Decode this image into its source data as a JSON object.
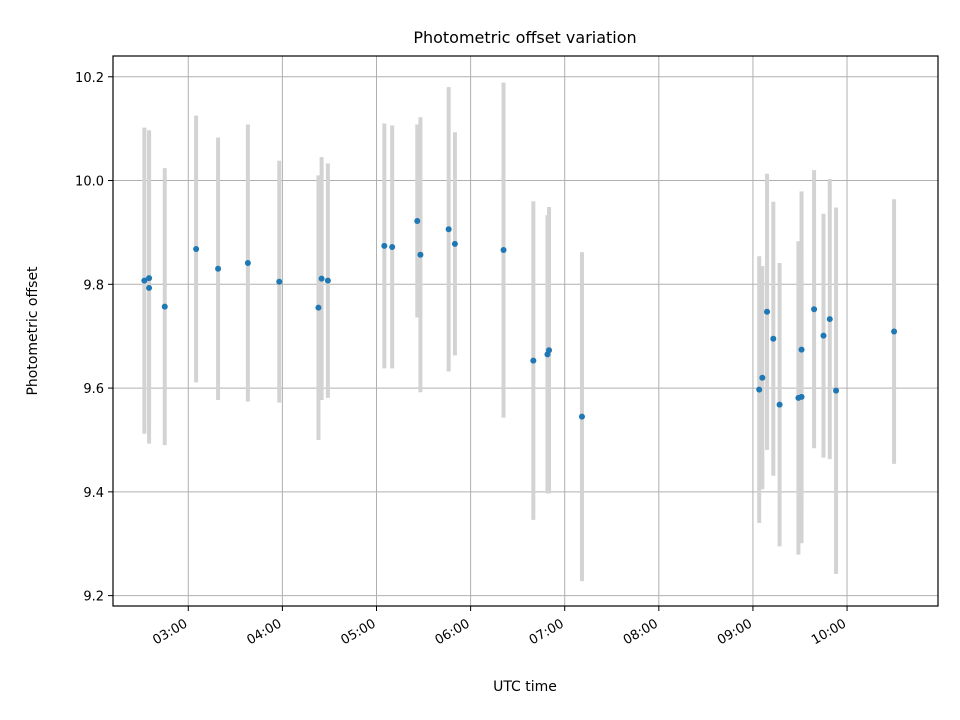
{
  "chart_data": {
    "type": "scatter",
    "title": "Photometric offset variation",
    "xlabel": "UTC time",
    "ylabel": "Photometric offset",
    "x_axis": {
      "type": "time",
      "range": [
        "02:12",
        "10:58"
      ],
      "ticks": [
        "03:00",
        "04:00",
        "05:00",
        "06:00",
        "07:00",
        "08:00",
        "09:00",
        "10:00"
      ]
    },
    "y_axis": {
      "range": [
        9.18,
        10.24
      ],
      "ticks": [
        "9.2",
        "9.4",
        "9.6",
        "9.8",
        "10.0",
        "10.2"
      ]
    },
    "grid": true,
    "legend": "none",
    "colors": {
      "points": "#1f77b4",
      "error_bars": "#d3d3d3"
    },
    "points": [
      {
        "t": "02:32",
        "y": 9.807,
        "err": 0.295
      },
      {
        "t": "02:35",
        "y": 9.812,
        "err": 0.285
      },
      {
        "t": "02:35",
        "y": 9.793,
        "err": 0.3
      },
      {
        "t": "02:45",
        "y": 9.757,
        "err": 0.267
      },
      {
        "t": "03:05",
        "y": 9.868,
        "err": 0.257
      },
      {
        "t": "03:19",
        "y": 9.83,
        "err": 0.253
      },
      {
        "t": "03:38",
        "y": 9.841,
        "err": 0.267
      },
      {
        "t": "03:58",
        "y": 9.805,
        "err": 0.233
      },
      {
        "t": "04:23",
        "y": 9.755,
        "err": 0.255
      },
      {
        "t": "04:25",
        "y": 9.811,
        "err": 0.234
      },
      {
        "t": "04:29",
        "y": 9.807,
        "err": 0.226
      },
      {
        "t": "05:05",
        "y": 9.874,
        "err": 0.236
      },
      {
        "t": "05:10",
        "y": 9.872,
        "err": 0.234
      },
      {
        "t": "05:26",
        "y": 9.922,
        "err": 0.186
      },
      {
        "t": "05:28",
        "y": 9.857,
        "err": 0.265
      },
      {
        "t": "05:46",
        "y": 9.906,
        "err": 0.274
      },
      {
        "t": "05:50",
        "y": 9.878,
        "err": 0.215
      },
      {
        "t": "06:21",
        "y": 9.866,
        "err": 0.323
      },
      {
        "t": "06:40",
        "y": 9.653,
        "err": 0.307
      },
      {
        "t": "06:49",
        "y": 9.665,
        "err": 0.268
      },
      {
        "t": "06:50",
        "y": 9.673,
        "err": 0.276
      },
      {
        "t": "07:11",
        "y": 9.545,
        "err": 0.317
      },
      {
        "t": "09:04",
        "y": 9.597,
        "err": 0.257
      },
      {
        "t": "09:06",
        "y": 9.62,
        "err": 0.215
      },
      {
        "t": "09:09",
        "y": 9.747,
        "err": 0.266
      },
      {
        "t": "09:13",
        "y": 9.695,
        "err": 0.264
      },
      {
        "t": "09:17",
        "y": 9.568,
        "err": 0.273
      },
      {
        "t": "09:29",
        "y": 9.581,
        "err": 0.302
      },
      {
        "t": "09:31",
        "y": 9.583,
        "err": 0.282
      },
      {
        "t": "09:31",
        "y": 9.674,
        "err": 0.305
      },
      {
        "t": "09:39",
        "y": 9.752,
        "err": 0.268
      },
      {
        "t": "09:45",
        "y": 9.701,
        "err": 0.235
      },
      {
        "t": "09:49",
        "y": 9.733,
        "err": 0.27
      },
      {
        "t": "09:53",
        "y": 9.595,
        "err": 0.353
      },
      {
        "t": "10:30",
        "y": 9.709,
        "err": 0.255
      }
    ]
  }
}
